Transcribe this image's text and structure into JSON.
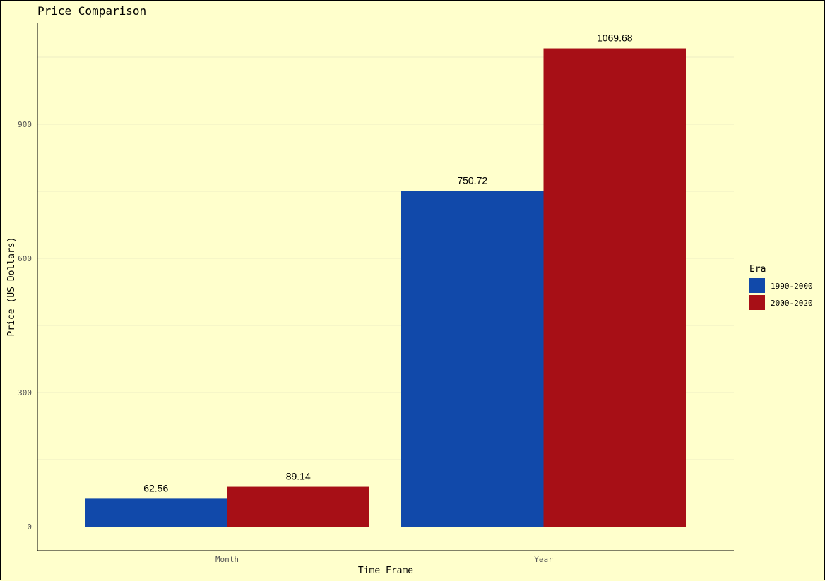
{
  "chart_data": {
    "type": "bar",
    "title": "Price Comparison",
    "xlabel": "Time Frame",
    "ylabel": "Price (US Dollars)",
    "categories": [
      "Month",
      "Year"
    ],
    "series": [
      {
        "name": "1990-2000",
        "color": "#1149aa",
        "values": [
          62.56,
          750.72
        ]
      },
      {
        "name": "2000-2020",
        "color": "#a70f16",
        "values": [
          89.14,
          1069.68
        ]
      }
    ],
    "ylim": [
      0,
      1100
    ],
    "yticks": [
      0,
      300,
      600,
      900
    ],
    "ytick_labels": [
      "0",
      "300",
      "600",
      "900"
    ],
    "data_labels": [
      [
        "62.56",
        "750.72"
      ],
      [
        "89.14",
        "1069.68"
      ]
    ],
    "legend": {
      "title": "Era",
      "position": "right"
    },
    "grid": true
  }
}
